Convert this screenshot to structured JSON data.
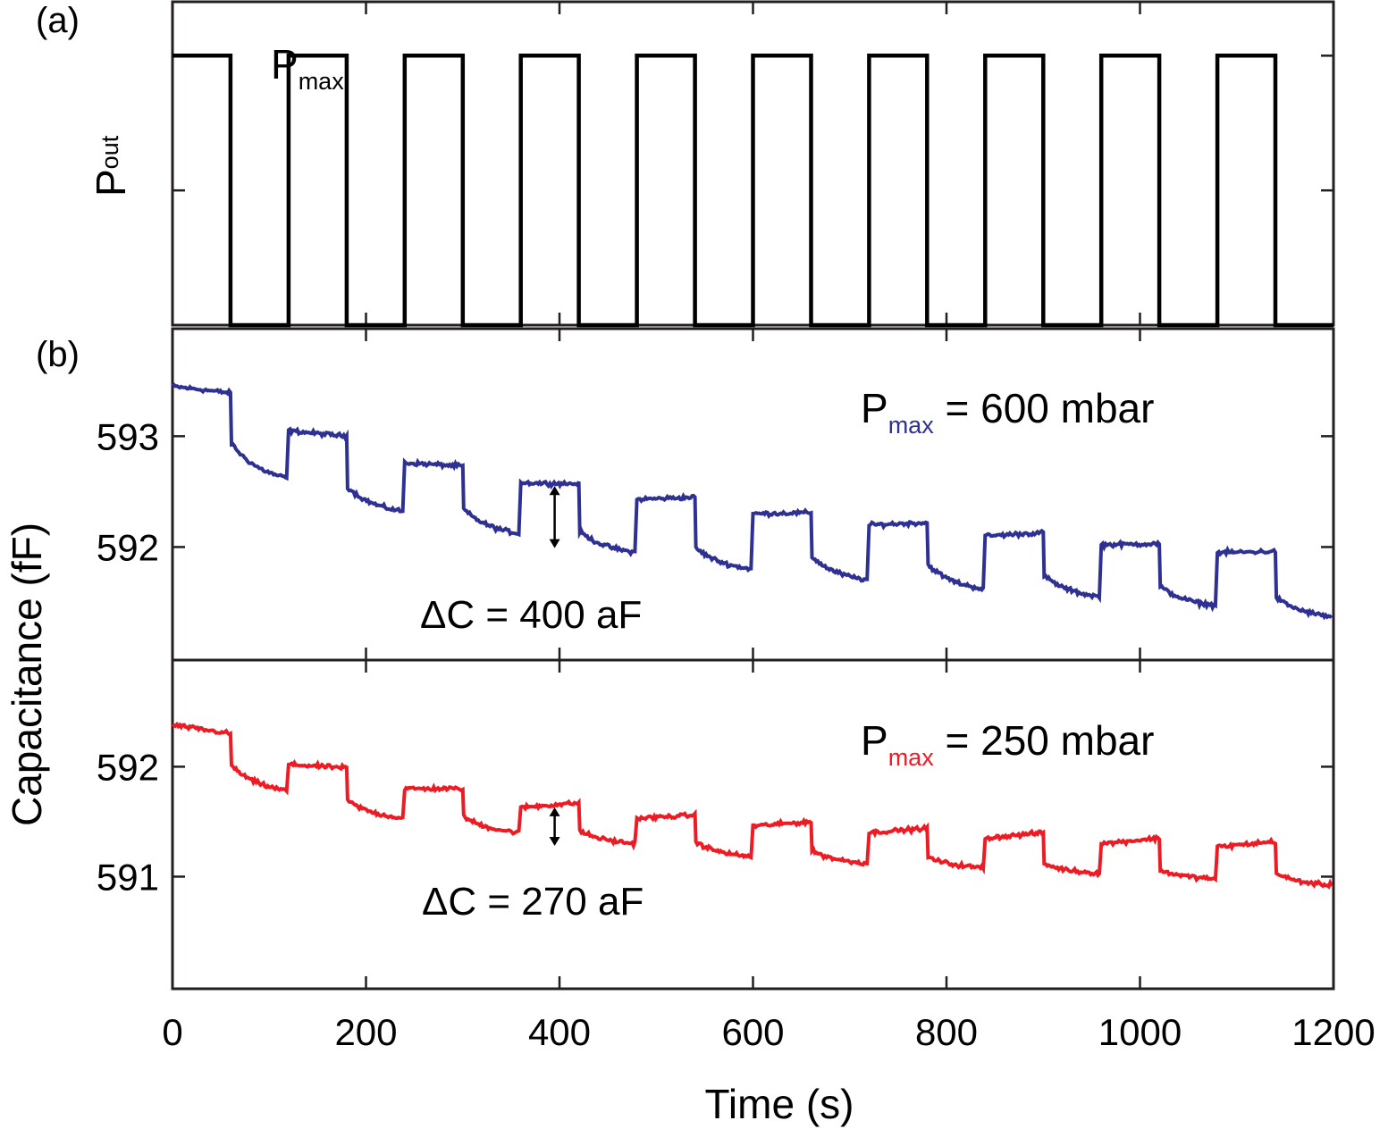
{
  "colors": {
    "axes": "#231f20",
    "pressure": "#000000",
    "series_600": "#2e3192",
    "series_250": "#ed1c24"
  },
  "chart_data": [
    {
      "panel": "(a)",
      "type": "line",
      "ylabel_main": "P",
      "ylabel_sub": "out",
      "level_label_main": "P",
      "level_label_sub": "max",
      "xlim": [
        0,
        1200
      ],
      "ylim": [
        0,
        1.2
      ],
      "x": [
        0,
        60,
        60,
        120,
        120,
        180,
        180,
        240,
        240,
        300,
        300,
        360,
        360,
        420,
        420,
        480,
        480,
        540,
        540,
        600,
        600,
        660,
        660,
        720,
        720,
        780,
        780,
        840,
        840,
        900,
        900,
        960,
        960,
        1020,
        1020,
        1080,
        1080,
        1140,
        1140,
        1200
      ],
      "y": [
        1,
        1,
        0,
        0,
        1,
        1,
        0,
        0,
        1,
        1,
        0,
        0,
        1,
        1,
        0,
        0,
        1,
        1,
        0,
        0,
        1,
        1,
        0,
        0,
        1,
        1,
        0,
        0,
        1,
        1,
        0,
        0,
        1,
        1,
        0,
        0,
        1,
        1,
        0,
        0
      ],
      "high_segments": [
        [
          0,
          60
        ],
        [
          120,
          180
        ],
        [
          240,
          300
        ],
        [
          360,
          420
        ],
        [
          480,
          540
        ],
        [
          600,
          660
        ],
        [
          720,
          780
        ],
        [
          840,
          900
        ],
        [
          960,
          1020
        ],
        [
          1080,
          1140
        ]
      ]
    },
    {
      "panel": "(b)",
      "type": "line",
      "ylabel": "Capacitance (fF)",
      "xlabel": "Time (s)",
      "xlim": [
        0,
        1200
      ],
      "xticks": [
        "0",
        "200",
        "400",
        "600",
        "800",
        "1000",
        "1200"
      ],
      "series": [
        {
          "legend_main": "P",
          "legend_sub": "max",
          "legend_rest": " = 600 mbar",
          "ylim": [
            590.98,
            593.97
          ],
          "yticks": [
            "592",
            "593"
          ],
          "annotation": "ΔC = 400 aF",
          "annotation_arrow": {
            "x": 395,
            "y_from": 592.55,
            "y_to": 591.99
          },
          "on_start": [
            593.45,
            593.05,
            592.76,
            592.58,
            592.43,
            592.3,
            592.2,
            592.1,
            592.02,
            591.95
          ],
          "on_end": [
            593.39,
            593.0,
            592.73,
            592.57,
            592.45,
            592.31,
            592.22,
            592.13,
            592.03,
            591.96
          ],
          "off_start": [
            592.95,
            592.55,
            592.35,
            592.15,
            592.0,
            591.92,
            591.85,
            591.75,
            591.65,
            591.55
          ],
          "off_end": [
            592.62,
            592.32,
            592.12,
            591.95,
            591.8,
            591.7,
            591.62,
            591.55,
            591.47,
            591.37
          ]
        },
        {
          "legend_main": "P",
          "legend_sub": "max",
          "legend_rest": " = 250 mbar",
          "ylim": [
            589.98,
            592.97
          ],
          "yticks": [
            "591",
            "592"
          ],
          "annotation": "ΔC = 270 aF",
          "annotation_arrow": {
            "x": 395,
            "y_from": 591.63,
            "y_to": 591.28
          },
          "on_start": [
            592.38,
            592.02,
            591.8,
            591.63,
            591.53,
            591.46,
            591.4,
            591.35,
            591.3,
            591.27
          ],
          "on_end": [
            592.3,
            591.99,
            591.8,
            591.67,
            591.56,
            591.5,
            591.44,
            591.4,
            591.35,
            591.32
          ],
          "off_start": [
            592.02,
            591.7,
            591.55,
            591.42,
            591.32,
            591.24,
            591.18,
            591.12,
            591.06,
            591.03
          ],
          "off_end": [
            591.78,
            591.53,
            591.4,
            591.3,
            591.18,
            591.12,
            591.08,
            591.03,
            590.98,
            590.92
          ]
        }
      ]
    }
  ]
}
